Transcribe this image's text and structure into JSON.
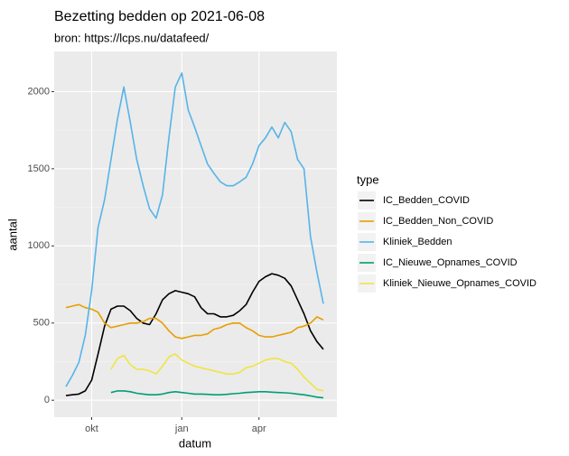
{
  "chart_data": {
    "type": "line",
    "title": "Bezetting bedden op 2021-06-08",
    "subtitle": "bron: https://lcps.nu/datafeed/",
    "x_label": "datum",
    "y_label": "aantal",
    "legend_title": "type",
    "legend_position": "right",
    "grid": true,
    "categories": [
      null,
      null,
      null,
      null,
      "okt",
      null,
      null,
      null,
      null,
      null,
      null,
      null,
      null,
      null,
      null,
      null,
      null,
      null,
      "jan",
      null,
      null,
      null,
      null,
      null,
      null,
      null,
      null,
      null,
      null,
      null,
      "apr",
      null,
      null,
      null,
      null,
      null,
      null,
      null,
      null,
      null,
      null
    ],
    "ylim": [
      -110,
      2260
    ],
    "yticks": [
      0,
      500,
      1000,
      1500,
      2000
    ],
    "series": [
      {
        "name": "IC_Bedden_COVID",
        "color": "#000000",
        "values": [
          30,
          35,
          40,
          60,
          130,
          300,
          480,
          590,
          610,
          610,
          580,
          530,
          500,
          490,
          560,
          650,
          690,
          710,
          700,
          690,
          670,
          600,
          560,
          560,
          540,
          540,
          550,
          580,
          620,
          700,
          770,
          800,
          820,
          810,
          790,
          740,
          650,
          560,
          450,
          380,
          330
        ]
      },
      {
        "name": "IC_Bedden_Non_COVID",
        "color": "#E69F00",
        "values": [
          600,
          610,
          620,
          600,
          590,
          570,
          500,
          470,
          480,
          490,
          500,
          500,
          510,
          530,
          530,
          500,
          450,
          410,
          400,
          410,
          420,
          420,
          430,
          460,
          470,
          490,
          500,
          500,
          470,
          450,
          420,
          410,
          410,
          420,
          430,
          440,
          470,
          480,
          500,
          540,
          520
        ]
      },
      {
        "name": "Kliniek_Bedden",
        "color": "#56B4E9",
        "values": [
          88,
          160,
          245,
          420,
          710,
          1120,
          1300,
          1560,
          1820,
          2030,
          1800,
          1560,
          1390,
          1240,
          1180,
          1330,
          1700,
          2030,
          2120,
          1880,
          1770,
          1650,
          1530,
          1470,
          1415,
          1390,
          1390,
          1415,
          1445,
          1530,
          1650,
          1700,
          1770,
          1700,
          1800,
          1740,
          1560,
          1500,
          1060,
          830,
          625
        ]
      },
      {
        "name": "IC_Nieuwe_Opnames_COVID",
        "color": "#009E73",
        "values": [
          null,
          null,
          null,
          null,
          null,
          null,
          null,
          50,
          60,
          60,
          55,
          45,
          40,
          35,
          35,
          40,
          50,
          55,
          50,
          45,
          40,
          40,
          38,
          35,
          35,
          38,
          42,
          45,
          50,
          52,
          55,
          55,
          52,
          50,
          48,
          45,
          40,
          35,
          28,
          20,
          15
        ]
      },
      {
        "name": "Kliniek_Nieuwe_Opnames_COVID",
        "color": "#F0E442",
        "values": [
          null,
          null,
          null,
          null,
          null,
          null,
          null,
          200,
          270,
          290,
          230,
          200,
          200,
          190,
          170,
          220,
          280,
          300,
          260,
          240,
          220,
          210,
          200,
          190,
          180,
          170,
          170,
          180,
          210,
          220,
          240,
          260,
          270,
          270,
          250,
          240,
          200,
          150,
          110,
          70,
          60
        ]
      }
    ]
  }
}
